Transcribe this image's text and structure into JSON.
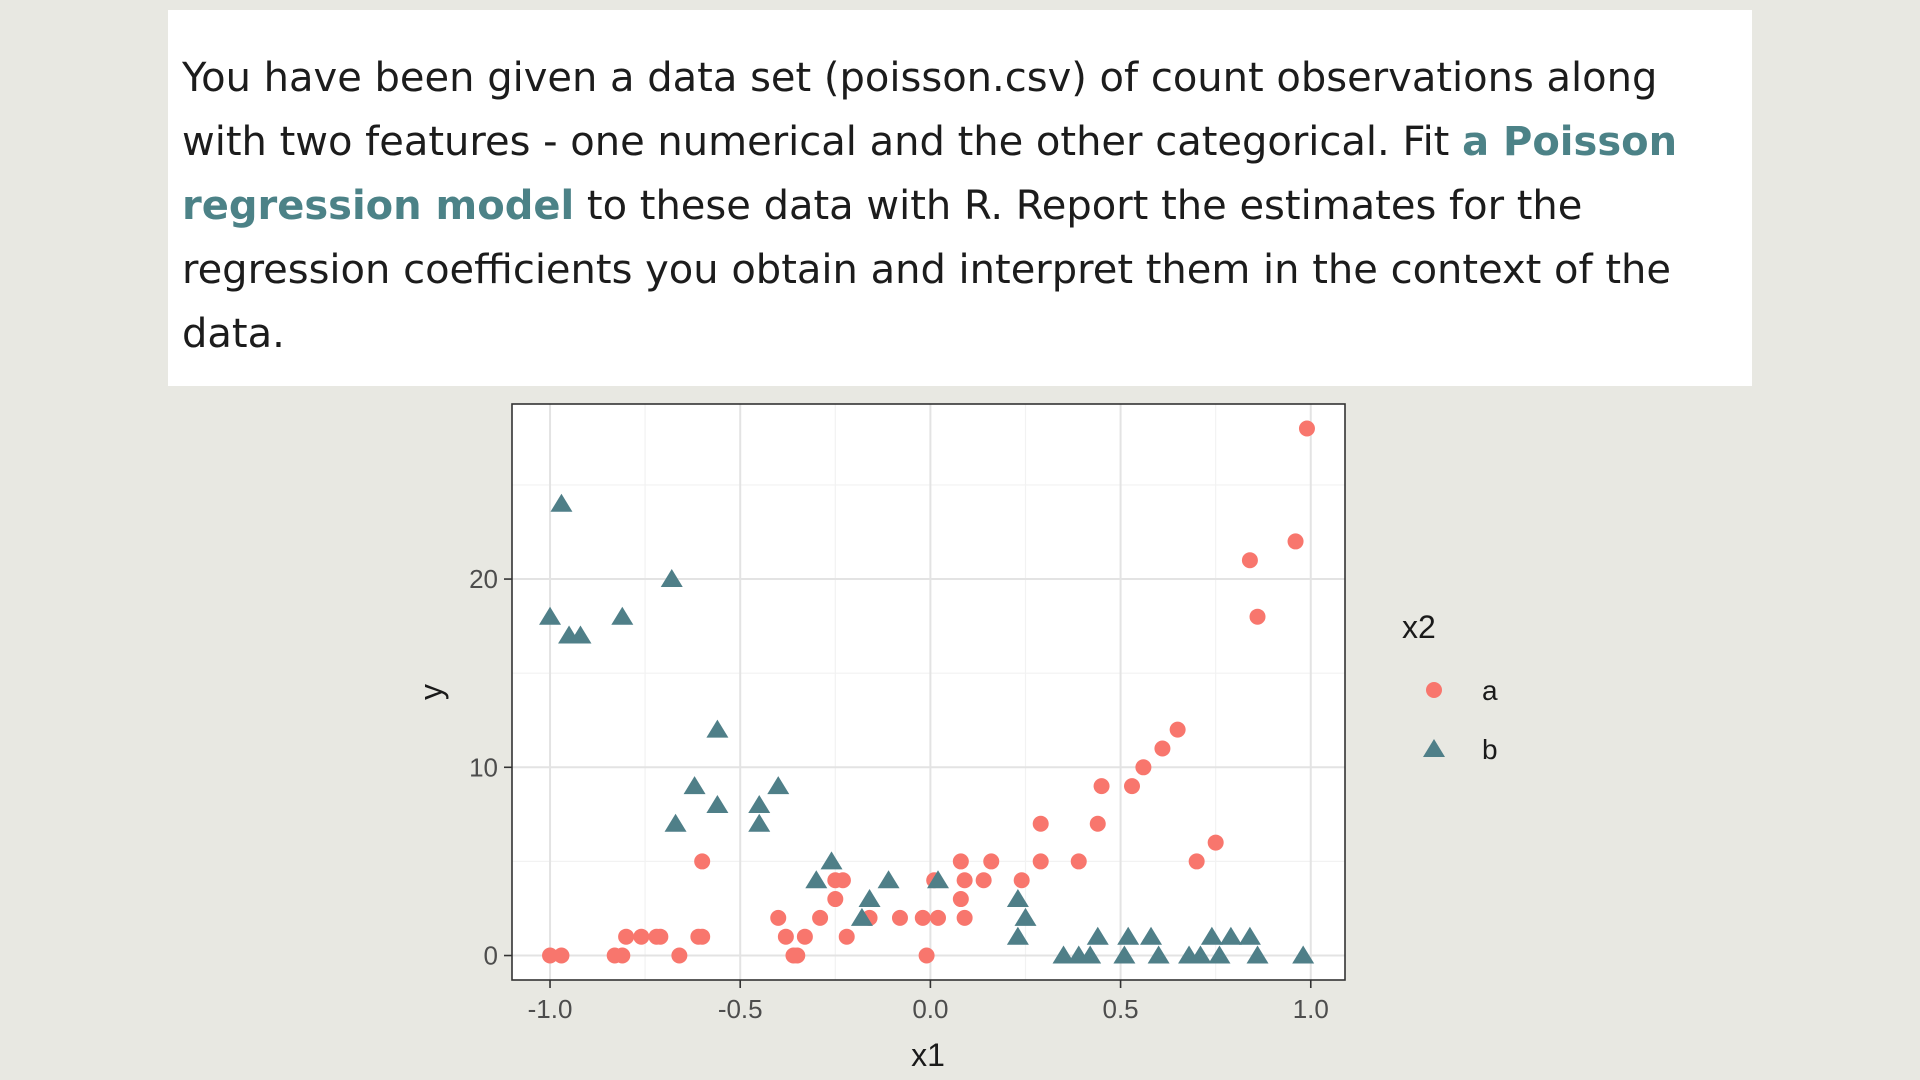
{
  "prompt": {
    "before": "You have been given a data set (poisson.csv) of count observations along with two features - one numerical and the other categorical. Fit ",
    "link": "a Poisson regression model",
    "after": " to these data with R. Report the estimates for the regression coefficients you obtain and interpret them in the context of the data."
  },
  "colors": {
    "a": "#f8766d",
    "b": "#4f7f88"
  },
  "chart_data": {
    "type": "scatter",
    "title": "",
    "xlabel": "x1",
    "ylabel": "y",
    "xlim": [
      -1.1,
      1.09
    ],
    "ylim": [
      -1.3,
      29.3
    ],
    "x_ticks": [
      -1.0,
      -0.5,
      0.0,
      0.5,
      1.0
    ],
    "x_tick_labels": [
      "-1.0",
      "-0.5",
      "0.0",
      "0.5",
      "1.0"
    ],
    "y_ticks": [
      0,
      10,
      20
    ],
    "y_tick_labels": [
      "0",
      "10",
      "20"
    ],
    "grid": true,
    "legend": {
      "title": "x2",
      "position": "right",
      "entries": [
        {
          "label": "a",
          "shape": "circle"
        },
        {
          "label": "b",
          "shape": "triangle"
        }
      ]
    },
    "series": [
      {
        "name": "a",
        "shape": "circle",
        "points": [
          [
            -1.0,
            0
          ],
          [
            -0.97,
            0
          ],
          [
            -0.83,
            0
          ],
          [
            -0.81,
            0
          ],
          [
            -0.8,
            1
          ],
          [
            -0.76,
            1
          ],
          [
            -0.72,
            1
          ],
          [
            -0.71,
            1
          ],
          [
            -0.66,
            0
          ],
          [
            -0.61,
            1
          ],
          [
            -0.6,
            5
          ],
          [
            -0.6,
            1
          ],
          [
            -0.4,
            2
          ],
          [
            -0.38,
            1
          ],
          [
            -0.36,
            0
          ],
          [
            -0.35,
            0
          ],
          [
            -0.33,
            1
          ],
          [
            -0.29,
            2
          ],
          [
            -0.25,
            4
          ],
          [
            -0.25,
            3
          ],
          [
            -0.23,
            4
          ],
          [
            -0.22,
            1
          ],
          [
            -0.16,
            2
          ],
          [
            -0.08,
            2
          ],
          [
            -0.02,
            2
          ],
          [
            -0.01,
            0
          ],
          [
            0.01,
            4
          ],
          [
            0.02,
            2
          ],
          [
            0.08,
            5
          ],
          [
            0.08,
            3
          ],
          [
            0.09,
            4
          ],
          [
            0.09,
            2
          ],
          [
            0.14,
            4
          ],
          [
            0.16,
            5
          ],
          [
            0.24,
            4
          ],
          [
            0.29,
            5
          ],
          [
            0.29,
            7
          ],
          [
            0.39,
            5
          ],
          [
            0.44,
            7
          ],
          [
            0.45,
            9
          ],
          [
            0.53,
            9
          ],
          [
            0.56,
            10
          ],
          [
            0.61,
            11
          ],
          [
            0.65,
            12
          ],
          [
            0.7,
            5
          ],
          [
            0.75,
            6
          ],
          [
            0.84,
            21
          ],
          [
            0.86,
            18
          ],
          [
            0.96,
            22
          ],
          [
            0.99,
            28
          ]
        ]
      },
      {
        "name": "b",
        "shape": "triangle",
        "points": [
          [
            -0.97,
            24
          ],
          [
            -1.0,
            18
          ],
          [
            -0.95,
            17
          ],
          [
            -0.92,
            17
          ],
          [
            -0.81,
            18
          ],
          [
            -0.68,
            20
          ],
          [
            -0.56,
            12
          ],
          [
            -0.67,
            7
          ],
          [
            -0.62,
            9
          ],
          [
            -0.56,
            8
          ],
          [
            -0.45,
            8
          ],
          [
            -0.45,
            7
          ],
          [
            -0.4,
            9
          ],
          [
            -0.3,
            4
          ],
          [
            -0.26,
            5
          ],
          [
            -0.18,
            2
          ],
          [
            -0.16,
            3
          ],
          [
            -0.11,
            4
          ],
          [
            0.02,
            4
          ],
          [
            0.23,
            3
          ],
          [
            0.25,
            2
          ],
          [
            0.23,
            1
          ],
          [
            0.35,
            0
          ],
          [
            0.39,
            0
          ],
          [
            0.42,
            0
          ],
          [
            0.44,
            1
          ],
          [
            0.51,
            0
          ],
          [
            0.52,
            1
          ],
          [
            0.58,
            1
          ],
          [
            0.6,
            0
          ],
          [
            0.68,
            0
          ],
          [
            0.71,
            0
          ],
          [
            0.74,
            1
          ],
          [
            0.76,
            0
          ],
          [
            0.79,
            1
          ],
          [
            0.84,
            1
          ],
          [
            0.86,
            0
          ],
          [
            0.98,
            0
          ]
        ]
      }
    ]
  }
}
